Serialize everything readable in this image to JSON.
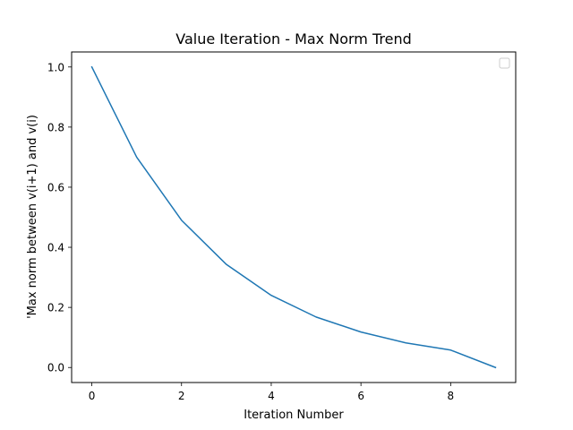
{
  "chart_data": {
    "type": "line",
    "title": "Value Iteration - Max Norm Trend",
    "xlabel": "Iteration Number",
    "ylabel": "'Max norm between v(i+1) and v(i)",
    "x": [
      0,
      1,
      2,
      3,
      4,
      5,
      6,
      7,
      8,
      9
    ],
    "series": [
      {
        "values": [
          1.0,
          0.7,
          0.49,
          0.343,
          0.24,
          0.168,
          0.118,
          0.082,
          0.058,
          0.0
        ]
      }
    ],
    "xticks": [
      0,
      2,
      4,
      6,
      8
    ],
    "xtick_labels": [
      "0",
      "2",
      "4",
      "6",
      "8"
    ],
    "yticks": [
      0.0,
      0.2,
      0.4,
      0.6,
      0.8,
      1.0
    ],
    "ytick_labels": [
      "0.0",
      "0.2",
      "0.4",
      "0.6",
      "0.8",
      "1.0"
    ],
    "xlim": [
      -0.45,
      9.45
    ],
    "ylim": [
      -0.05,
      1.05
    ],
    "grid": false,
    "legend": "upper right (empty)",
    "colors": {
      "line": "#1f77b4",
      "axes": "#000000",
      "legend_border": "#cccccc"
    }
  }
}
